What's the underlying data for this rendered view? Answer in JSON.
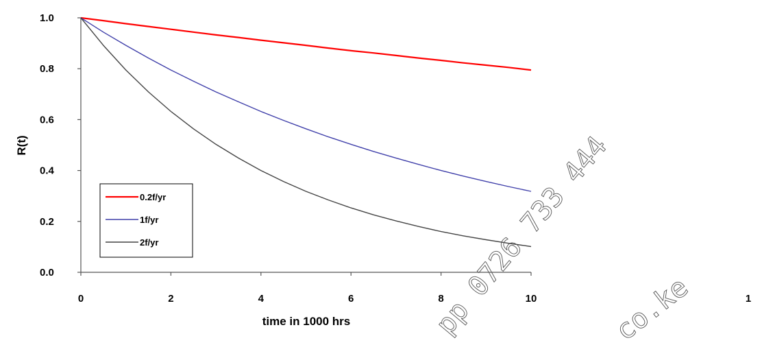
{
  "chart_data": {
    "type": "line",
    "title": "",
    "xlabel": "time in 1000 hrs",
    "ylabel": "R(t)",
    "xlim": [
      0,
      10
    ],
    "ylim": [
      0,
      1.0
    ],
    "x_ticks": [
      "0",
      "2",
      "4",
      "6",
      "8",
      "10"
    ],
    "y_ticks": [
      "0.0",
      "0.2",
      "0.4",
      "0.6",
      "0.8",
      "1.0"
    ],
    "grid": false,
    "legend_position": "bottom-left",
    "x": [
      0,
      0.5,
      1,
      1.5,
      2,
      2.5,
      3,
      3.5,
      4,
      4.5,
      5,
      5.5,
      6,
      6.5,
      7,
      7.5,
      8,
      8.5,
      9,
      9.5,
      10
    ],
    "series": [
      {
        "name": "0.2f/yr",
        "color": "#ff0000",
        "values": [
          1.0,
          0.989,
          0.977,
          0.966,
          0.955,
          0.944,
          0.933,
          0.923,
          0.912,
          0.902,
          0.892,
          0.881,
          0.871,
          0.862,
          0.852,
          0.842,
          0.833,
          0.823,
          0.814,
          0.805,
          0.795
        ]
      },
      {
        "name": "1f/yr",
        "color": "#4040aa",
        "values": [
          1.0,
          0.944,
          0.892,
          0.842,
          0.795,
          0.751,
          0.709,
          0.67,
          0.632,
          0.597,
          0.564,
          0.532,
          0.503,
          0.475,
          0.449,
          0.424,
          0.4,
          0.378,
          0.357,
          0.337,
          0.318
        ]
      },
      {
        "name": "2f/yr",
        "color": "#444444",
        "values": [
          1.0,
          0.892,
          0.795,
          0.709,
          0.632,
          0.564,
          0.503,
          0.449,
          0.4,
          0.357,
          0.318,
          0.284,
          0.253,
          0.226,
          0.202,
          0.18,
          0.16,
          0.143,
          0.128,
          0.114,
          0.101
        ]
      }
    ]
  },
  "overflow_label": "1",
  "watermark": {
    "phone": "pp 0726 733 444",
    "domain": "co.ke"
  }
}
